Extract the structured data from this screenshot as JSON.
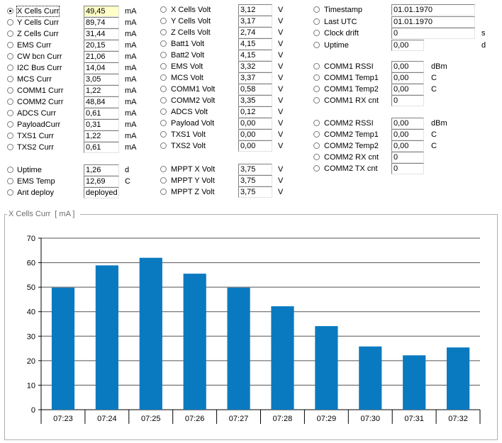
{
  "col1": [
    {
      "label": "X Cells Curr",
      "value": "49,45",
      "unit": "mA",
      "selected": true,
      "highlight": true
    },
    {
      "label": "Y Cells Curr",
      "value": "89,74",
      "unit": "mA"
    },
    {
      "label": "Z Cells Curr",
      "value": "31,44",
      "unit": "mA"
    },
    {
      "label": "EMS Curr",
      "value": "20,15",
      "unit": "mA"
    },
    {
      "label": "CW bcn Curr",
      "value": "21,06",
      "unit": "mA"
    },
    {
      "label": "I2C Bus Curr",
      "value": "14,04",
      "unit": "mA"
    },
    {
      "label": "MCS Curr",
      "value": "3,05",
      "unit": "mA"
    },
    {
      "label": "COMM1 Curr",
      "value": "1,22",
      "unit": "mA"
    },
    {
      "label": "COMM2 Curr",
      "value": "48,84",
      "unit": "mA"
    },
    {
      "label": "ADCS Curr",
      "value": "0,61",
      "unit": "mA"
    },
    {
      "label": "PayloadCurr",
      "value": "0,31",
      "unit": "mA"
    },
    {
      "label": "TXS1 Curr",
      "value": "1,22",
      "unit": "mA"
    },
    {
      "label": "TXS2 Curr",
      "value": "0,61",
      "unit": "mA"
    }
  ],
  "col1b": [
    {
      "label": "Uptime",
      "value": "1,26",
      "unit": "d"
    },
    {
      "label": "EMS Temp",
      "value": "12,69",
      "unit": "C"
    },
    {
      "label": "Ant deploy",
      "value": "deployed",
      "unit": ""
    }
  ],
  "col2": [
    {
      "label": "X Cells Volt",
      "value": "3,12",
      "unit": "V"
    },
    {
      "label": "Y Cells Volt",
      "value": "3,17",
      "unit": "V"
    },
    {
      "label": "Z Cells Volt",
      "value": "2,74",
      "unit": "V"
    },
    {
      "label": "Batt1 Volt",
      "value": "4,15",
      "unit": "V"
    },
    {
      "label": "Batt2 Volt",
      "value": "4,15",
      "unit": "V"
    },
    {
      "label": "EMS Volt",
      "value": "3,32",
      "unit": "V"
    },
    {
      "label": "MCS Volt",
      "value": "3,37",
      "unit": "V"
    },
    {
      "label": "COMM1 Volt",
      "value": "0,58",
      "unit": "V"
    },
    {
      "label": "COMM2 Volt",
      "value": "3,35",
      "unit": "V"
    },
    {
      "label": "ADCS Volt",
      "value": "0,12",
      "unit": "V"
    },
    {
      "label": "Payload Volt",
      "value": "0,00",
      "unit": "V"
    },
    {
      "label": "TXS1 Volt",
      "value": "0,00",
      "unit": "V"
    },
    {
      "label": "TXS2 Volt",
      "value": "0,00",
      "unit": "V"
    }
  ],
  "col2b": [
    {
      "label": "MPPT X Volt",
      "value": "3,75",
      "unit": "V"
    },
    {
      "label": "MPPT Y Volt",
      "value": "3,75",
      "unit": "V"
    },
    {
      "label": "MPPT Z Volt",
      "value": "3,75",
      "unit": "V"
    }
  ],
  "col3a": [
    {
      "label": "Timestamp",
      "value": "01.01.1970",
      "unit": ""
    },
    {
      "label": "Last UTC",
      "value": "01.01.1970",
      "unit": ""
    },
    {
      "label": "Clock drift",
      "value": "0",
      "unit": "s"
    },
    {
      "label": "Uptime",
      "value": "0,00",
      "unit": "d"
    }
  ],
  "col3b": [
    {
      "label": "COMM1 RSSI",
      "value": "0,00",
      "unit": "dBm"
    },
    {
      "label": "COMM1 Temp1",
      "value": "0,00",
      "unit": "C"
    },
    {
      "label": "COMM1 Temp2",
      "value": "0,00",
      "unit": "C"
    },
    {
      "label": "COMM1 RX cnt",
      "value": "0",
      "unit": ""
    }
  ],
  "col3c": [
    {
      "label": "COMM2 RSSI",
      "value": "0,00",
      "unit": "dBm"
    },
    {
      "label": "COMM2 Temp1",
      "value": "0,00",
      "unit": "C"
    },
    {
      "label": "COMM2 Temp2",
      "value": "0,00",
      "unit": "C"
    },
    {
      "label": "COMM2 RX cnt",
      "value": "0",
      "unit": ""
    },
    {
      "label": "COMM2 TX cnt",
      "value": "0",
      "unit": ""
    }
  ],
  "chart_header": {
    "title": "X Cells Curr",
    "unit": "[ mA ]"
  },
  "chart_data": {
    "type": "bar",
    "categories": [
      "07:23",
      "07:24",
      "07:25",
      "07:26",
      "07:27",
      "07:28",
      "07:29",
      "07:30",
      "07:31",
      "07:32"
    ],
    "values": [
      49.8,
      58.9,
      62.0,
      55.5,
      49.8,
      42.2,
      34.1,
      25.8,
      22.2,
      25.4
    ],
    "ylim": [
      0,
      70
    ],
    "yticks": [
      "0",
      "10",
      "20",
      "30",
      "40",
      "50",
      "60",
      "70"
    ],
    "grid": true,
    "bar_color": "#0a7ac0",
    "xlabel": "",
    "ylabel": ""
  }
}
